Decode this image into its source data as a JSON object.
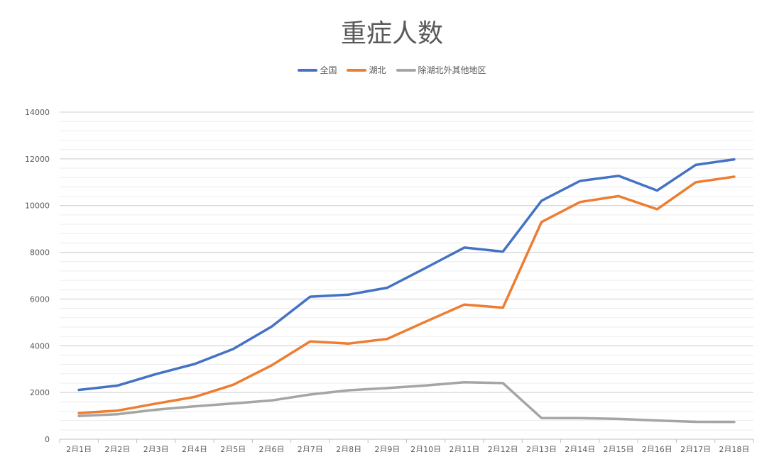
{
  "chart_data": {
    "type": "line",
    "title": "重症人数",
    "xlabel": "",
    "ylabel": "",
    "ylim": [
      0,
      14000
    ],
    "yticks": [
      0,
      2000,
      4000,
      6000,
      8000,
      10000,
      12000,
      14000
    ],
    "grid": true,
    "legend_position": "top",
    "categories": [
      "2月1日",
      "2月2日",
      "2月3日",
      "2月4日",
      "2月5日",
      "2月6日",
      "2月7日",
      "2月8日",
      "2月9日",
      "2月10日",
      "2月11日",
      "2月12日",
      "2月13日",
      "2月14日",
      "2月15日",
      "2月16日",
      "2月17日",
      "2月18日"
    ],
    "series": [
      {
        "name": "全国",
        "color": "#4472c4",
        "values": [
          2110,
          2296,
          2788,
          3219,
          3859,
          4821,
          6101,
          6188,
          6484,
          7333,
          8204,
          8030,
          10204,
          11053,
          11272,
          10644,
          11741,
          11977
        ]
      },
      {
        "name": "湖北",
        "color": "#ed7d31",
        "values": [
          1118,
          1223,
          1525,
          1809,
          2328,
          3161,
          4188,
          4093,
          4295,
          5034,
          5765,
          5629,
          9296,
          10152,
          10403,
          9842,
          10997,
          11237
        ]
      },
      {
        "name": "除湖北外其他地区",
        "color": "#a5a5a5",
        "values": [
          992,
          1073,
          1263,
          1410,
          1531,
          1660,
          1913,
          2095,
          2189,
          2299,
          2439,
          2401,
          908,
          901,
          869,
          802,
          744,
          740
        ]
      }
    ]
  }
}
